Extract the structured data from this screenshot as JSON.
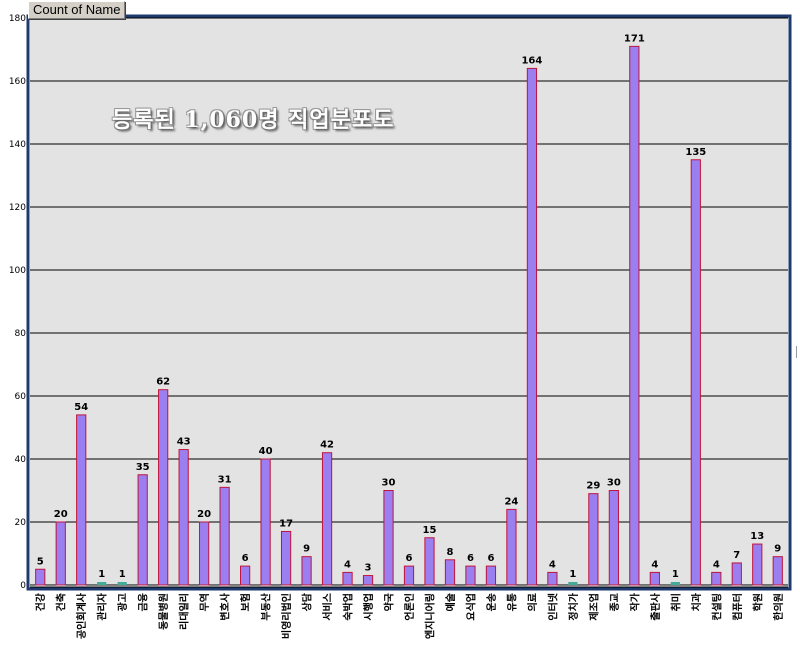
{
  "pivot_field_button": "Count of Name",
  "overlay_title": "등록된 1,060명 직업분포도",
  "colors": {
    "plot_bg": "#e3e3e3",
    "frame": "#1f3a6e",
    "bar_fill": "#9b7ff0",
    "bar_edge": "#c0143c",
    "tiny_bar": "#44aa99",
    "grid": "#000000"
  },
  "chart_data": {
    "type": "bar",
    "title": "",
    "xlabel": "",
    "ylabel": "",
    "ylim": [
      0,
      180
    ],
    "yticks": [
      0,
      20,
      40,
      60,
      80,
      100,
      120,
      140,
      160,
      180
    ],
    "grid": true,
    "categories": [
      "건강",
      "건축",
      "공인회계사",
      "관리자",
      "광고",
      "금융",
      "동물병원",
      "리대일리",
      "무역",
      "변호사",
      "보험",
      "부동산",
      "비영리법인",
      "상담",
      "서비스",
      "숙박업",
      "시행업",
      "약국",
      "언론인",
      "엔지니어링",
      "예술",
      "요식업",
      "운송",
      "유통",
      "의료",
      "인터넷",
      "정치가",
      "제조업",
      "종교",
      "작가",
      "출판사",
      "취미",
      "치과",
      "컨설팅",
      "컴퓨터",
      "학원",
      "한의원"
    ],
    "values": [
      5,
      20,
      54,
      1,
      1,
      35,
      62,
      43,
      20,
      31,
      6,
      40,
      17,
      9,
      42,
      4,
      3,
      30,
      6,
      15,
      8,
      6,
      6,
      24,
      164,
      4,
      1,
      29,
      30,
      171,
      4,
      1,
      135,
      4,
      7,
      13,
      9
    ]
  }
}
